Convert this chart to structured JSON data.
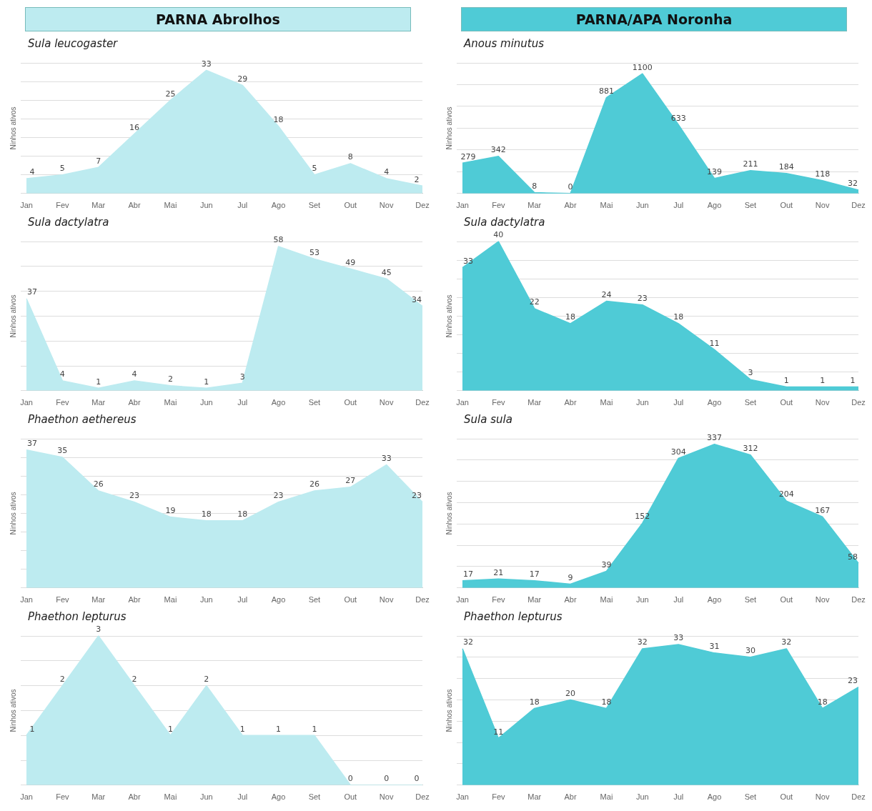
{
  "chart_data": [
    {
      "type": "area",
      "title": "PARNA Abrolhos",
      "subtitle": "Sula leucogaster",
      "ylabel": "Ninhos ativos",
      "categories": [
        "Jan",
        "Fev",
        "Mar",
        "Abr",
        "Mai",
        "Jun",
        "Jul",
        "Ago",
        "Set",
        "Out",
        "Nov",
        "Dez"
      ],
      "series": [
        {
          "color": "#bdebf0",
          "values": [
            4,
            5,
            7,
            16,
            25,
            33,
            29,
            18,
            5,
            8,
            4,
            2
          ]
        }
      ],
      "data_labels": true,
      "grid": "y",
      "tick_labels": "x"
    },
    {
      "type": "area",
      "title": "PARNA/APA Noronha",
      "subtitle": "Anous minutus",
      "ylabel": "Ninhos ativos",
      "categories": [
        "Jan",
        "Fev",
        "Mar",
        "Abr",
        "Mai",
        "Jun",
        "Jul",
        "Ago",
        "Set",
        "Out",
        "Nov",
        "Dez"
      ],
      "series": [
        {
          "color": "#4fcbd6",
          "values": [
            279,
            342,
            8,
            0,
            881,
            1100,
            633,
            139,
            211,
            184,
            118,
            32
          ]
        }
      ],
      "data_labels": true,
      "grid": "y",
      "tick_labels": "x"
    },
    {
      "type": "area",
      "title": "Sula dactylatra",
      "ylabel": "Ninhos ativos",
      "categories": [
        "Jan",
        "Fev",
        "Mar",
        "Abr",
        "Mai",
        "Jun",
        "Jul",
        "Ago",
        "Set",
        "Out",
        "Nov",
        "Dez"
      ],
      "series": [
        {
          "color": "#bdebf0",
          "values": [
            37,
            4,
            1,
            4,
            2,
            1,
            3,
            58,
            53,
            49,
            45,
            34
          ]
        }
      ],
      "data_labels": true,
      "grid": "y",
      "tick_labels": "x"
    },
    {
      "type": "area",
      "title": "Sula dactylatra",
      "ylabel": "Ninhos ativos",
      "categories": [
        "Jan",
        "Fev",
        "Mar",
        "Abr",
        "Mai",
        "Jun",
        "Jul",
        "Ago",
        "Set",
        "Out",
        "Nov",
        "Dez"
      ],
      "series": [
        {
          "color": "#4fcbd6",
          "values": [
            33,
            40,
            22,
            18,
            24,
            23,
            18,
            11,
            3,
            1,
            1,
            1
          ]
        }
      ],
      "data_labels": true,
      "grid": "y",
      "tick_labels": "x"
    },
    {
      "type": "area",
      "title": "Phaethon aethereus",
      "ylabel": "Ninhos ativos",
      "categories": [
        "Jan",
        "Fev",
        "Mar",
        "Abr",
        "Mai",
        "Jun",
        "Jul",
        "Ago",
        "Set",
        "Out",
        "Nov",
        "Dez"
      ],
      "series": [
        {
          "color": "#bdebf0",
          "values": [
            37,
            35,
            26,
            23,
            19,
            18,
            18,
            23,
            26,
            27,
            33,
            23
          ]
        }
      ],
      "data_labels": true,
      "grid": "y",
      "tick_labels": "x"
    },
    {
      "type": "area",
      "title": "Sula sula",
      "ylabel": "Ninhos ativos",
      "categories": [
        "Jan",
        "Fev",
        "Mar",
        "Abr",
        "Mai",
        "Jun",
        "Jul",
        "Ago",
        "Set",
        "Out",
        "Nov",
        "Dez"
      ],
      "series": [
        {
          "color": "#4fcbd6",
          "values": [
            17,
            21,
            17,
            9,
            39,
            152,
            304,
            337,
            312,
            204,
            167,
            58
          ]
        }
      ],
      "data_labels": true,
      "grid": "y",
      "tick_labels": "x"
    },
    {
      "type": "area",
      "title": "Phaethon lepturus",
      "ylabel": "Ninhos ativos",
      "categories": [
        "Jan",
        "Fev",
        "Mar",
        "Abr",
        "Mai",
        "Jun",
        "Jul",
        "Ago",
        "Set",
        "Out",
        "Nov",
        "Dez"
      ],
      "series": [
        {
          "color": "#bdebf0",
          "values": [
            1,
            2,
            3,
            2,
            1,
            2,
            1,
            1,
            1,
            0,
            0,
            0
          ]
        }
      ],
      "data_labels": true,
      "grid": "y",
      "tick_labels": "x"
    },
    {
      "type": "area",
      "title": "Phaethon lepturus",
      "ylabel": "Ninhos ativos",
      "categories": [
        "Jan",
        "Fev",
        "Mar",
        "Abr",
        "Mai",
        "Jun",
        "Jul",
        "Ago",
        "Set",
        "Out",
        "Nov",
        "Dez"
      ],
      "series": [
        {
          "color": "#4fcbd6",
          "values": [
            32,
            11,
            18,
            20,
            18,
            32,
            33,
            31,
            30,
            32,
            18,
            23
          ]
        }
      ],
      "data_labels": true,
      "grid": "y",
      "tick_labels": "x"
    }
  ]
}
